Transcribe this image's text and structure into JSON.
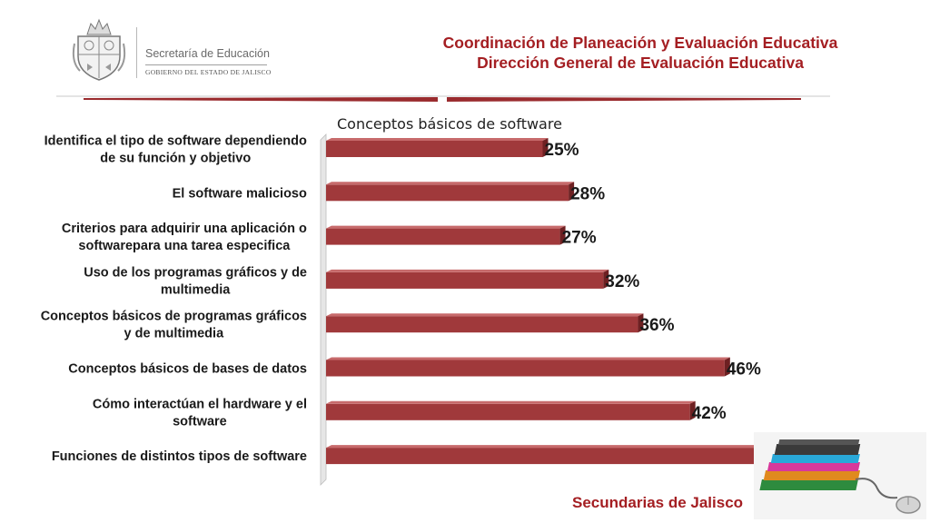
{
  "header": {
    "org_line1": "Secretaría de Educación",
    "org_line2": "GOBIERNO DEL ESTADO DE JALISCO",
    "title_line1": "Coordinación de Planeación y Evaluación Educativa",
    "title_line2": "Dirección General de Evaluación Educativa"
  },
  "footer": {
    "text": "Secundarias de Jalisco"
  },
  "colors": {
    "bar": "#a0393b",
    "bar_top": "#c76a6b",
    "bar_side": "#6e2022",
    "accent": "#a41e22"
  },
  "icons": {
    "logo": "jalisco-coat-of-arms-icon",
    "decoration": "books-and-mouse-icon"
  },
  "chart_data": {
    "type": "bar",
    "orientation": "horizontal",
    "title": "Conceptos básicos de software",
    "categories": [
      [
        "Identifica el tipo de software dependiendo",
        "de su función y objetivo"
      ],
      [
        "El software malicioso"
      ],
      [
        "Criterios para adquirir una aplicación o",
        "softwarepara una tarea especifica"
      ],
      [
        "Uso de los programas gráficos y de",
        "multimedia"
      ],
      [
        "Conceptos básicos de programas gráficos",
        "y de multimedia"
      ],
      [
        "Conceptos básicos de bases de datos"
      ],
      [
        "Cómo interactúan el hardware y el",
        "software"
      ],
      [
        "Funciones de distintos tipos de software"
      ]
    ],
    "values": [
      25,
      28,
      27,
      32,
      36,
      46,
      42,
      50
    ],
    "value_suffix": "%",
    "xlim": [
      0,
      50
    ],
    "grid": false,
    "legend": "none"
  }
}
